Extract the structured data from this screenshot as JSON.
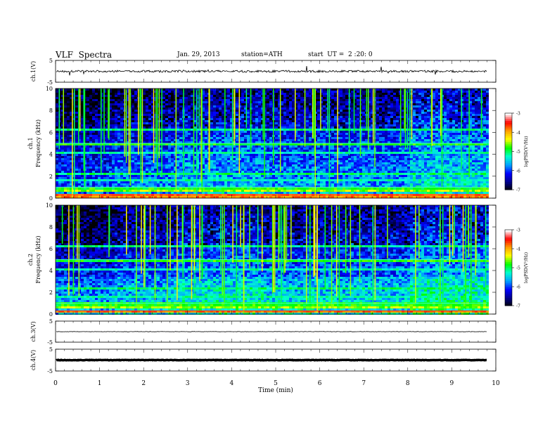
{
  "header": {
    "title": "VLF  Spectra",
    "date": "Jan. 29, 2013",
    "station": "station=ATH",
    "start": "start  UT =  2 :20: 0"
  },
  "chart_data": [
    {
      "type": "line",
      "panel": "ch1-waveform",
      "ylabel": "ch.1(V)",
      "ylim": [
        -5,
        5
      ],
      "yticks": [
        "5",
        "-5"
      ],
      "xlim": [
        0,
        10
      ],
      "baseline": 0,
      "color": "#000000"
    },
    {
      "type": "heatmap",
      "panel": "ch1-spectrogram",
      "ylabel_lines": [
        "ch.1",
        "Frequency  (kHz)"
      ],
      "ylim": [
        0,
        10
      ],
      "yticks": [
        "0",
        "2",
        "4",
        "6",
        "8",
        "10"
      ],
      "xlim": [
        0,
        10
      ],
      "data_end_min": 9.8,
      "segment_edges_min": [
        1.3,
        2.7,
        4.7,
        8.0
      ],
      "colorbar": {
        "label": "logPSD(V²/Hz)",
        "ticks": [
          "-3",
          "-4",
          "-5",
          "-6",
          "-7"
        ],
        "range": [
          -7,
          -3
        ]
      }
    },
    {
      "type": "heatmap",
      "panel": "ch2-spectrogram",
      "ylabel_lines": [
        "ch.2",
        "Frequency  (kHz)"
      ],
      "ylim": [
        0,
        10
      ],
      "yticks": [
        "0",
        "2",
        "4",
        "6",
        "8",
        "10"
      ],
      "xlim": [
        0,
        10
      ],
      "data_end_min": 9.8,
      "segment_edges_min": [
        1.3,
        2.7,
        4.7,
        8.0
      ],
      "colorbar": {
        "label": "logPSD(V²/Hz)",
        "ticks": [
          "-3",
          "-4",
          "-5",
          "-6",
          "-7"
        ],
        "range": [
          -7,
          -3
        ]
      }
    },
    {
      "type": "line",
      "panel": "ch3-waveform",
      "ylabel": "ch.3(V)",
      "ylim": [
        -5,
        5
      ],
      "yticks": [
        "5",
        "-5"
      ],
      "xlim": [
        0,
        10
      ],
      "baseline": 0,
      "color": "#000000"
    },
    {
      "type": "line",
      "panel": "ch4-waveform",
      "ylabel": "ch.4(V)",
      "ylim": [
        -5,
        5
      ],
      "yticks": [
        "5",
        "-5"
      ],
      "xlim": [
        0,
        10
      ],
      "baseline": 0,
      "color": "#000000"
    }
  ],
  "x_axis": {
    "label": "Time  (min)",
    "ticks": [
      "0",
      "1",
      "2",
      "3",
      "4",
      "5",
      "6",
      "7",
      "8",
      "9",
      "10"
    ],
    "range": [
      0,
      10
    ]
  },
  "colormap": [
    "#000000",
    "#00008b",
    "#0000ff",
    "#00a0ff",
    "#00ffd0",
    "#00ff00",
    "#ffff00",
    "#ffa000",
    "#ff0000",
    "#ffffff"
  ]
}
